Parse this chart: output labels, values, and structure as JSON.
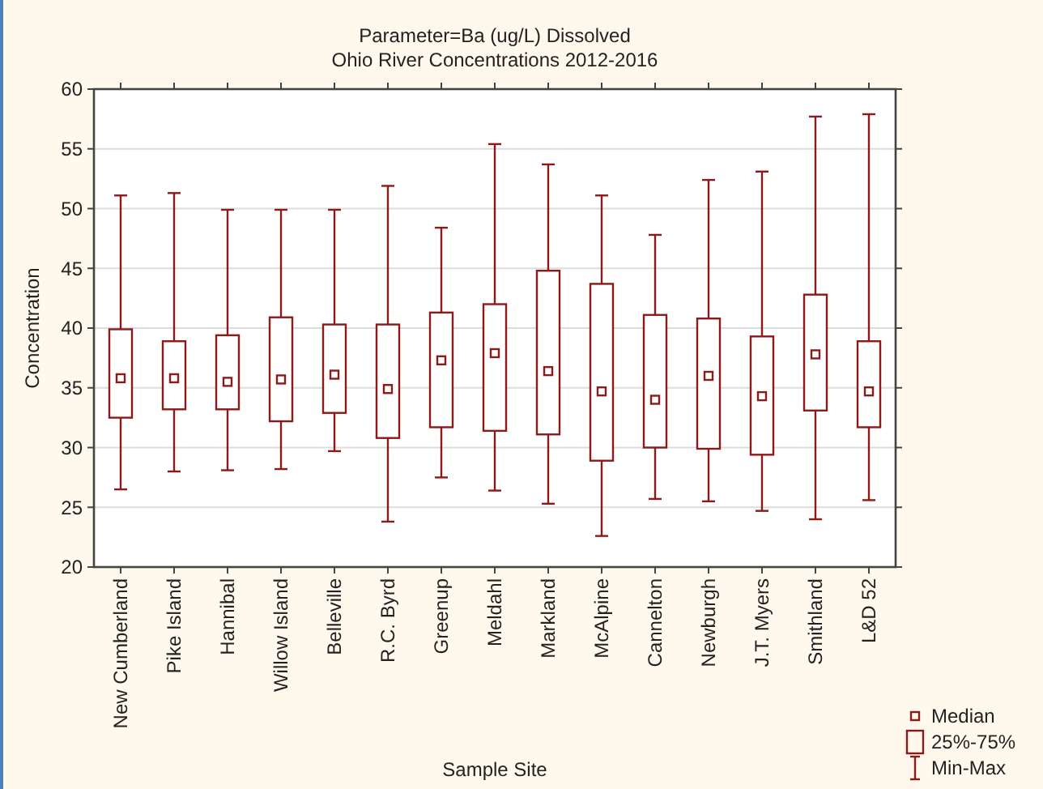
{
  "chart_data": {
    "type": "box",
    "title": "Parameter=Ba (ug/L) Dissolved",
    "subtitle": "Ohio River Concentrations 2012-2016",
    "xlabel": "Sample Site",
    "ylabel": "Concentration",
    "categories": [
      "New Cumberland",
      "Pike Island",
      "Hannibal",
      "Willow Island",
      "Belleville",
      "R.C. Byrd",
      "Greenup",
      "Meldahl",
      "Markland",
      "McAlpine",
      "Cannelton",
      "Newburgh",
      "J.T. Myers",
      "Smithland",
      "L&D 52"
    ],
    "color": "#8b1a1a",
    "boxes": [
      {
        "low": 26.5,
        "q1": 32.5,
        "median": 35.8,
        "q3": 39.9,
        "high": 51.1
      },
      {
        "low": 28.0,
        "q1": 33.2,
        "median": 35.8,
        "q3": 38.9,
        "high": 51.3
      },
      {
        "low": 28.1,
        "q1": 33.2,
        "median": 35.5,
        "q3": 39.4,
        "high": 49.9
      },
      {
        "low": 28.2,
        "q1": 32.2,
        "median": 35.7,
        "q3": 40.9,
        "high": 49.9
      },
      {
        "low": 29.7,
        "q1": 32.9,
        "median": 36.1,
        "q3": 40.3,
        "high": 49.9
      },
      {
        "low": 23.8,
        "q1": 30.8,
        "median": 34.9,
        "q3": 40.3,
        "high": 51.9
      },
      {
        "low": 27.5,
        "q1": 31.7,
        "median": 37.3,
        "q3": 41.3,
        "high": 48.4
      },
      {
        "low": 26.4,
        "q1": 31.4,
        "median": 37.9,
        "q3": 42.0,
        "high": 55.4
      },
      {
        "low": 25.3,
        "q1": 31.1,
        "median": 36.4,
        "q3": 44.8,
        "high": 53.7
      },
      {
        "low": 22.6,
        "q1": 28.9,
        "median": 34.7,
        "q3": 43.7,
        "high": 51.1
      },
      {
        "low": 25.7,
        "q1": 30.0,
        "median": 34.0,
        "q3": 41.1,
        "high": 47.8
      },
      {
        "low": 25.5,
        "q1": 29.9,
        "median": 36.0,
        "q3": 40.8,
        "high": 52.4
      },
      {
        "low": 24.7,
        "q1": 29.4,
        "median": 34.3,
        "q3": 39.3,
        "high": 53.1
      },
      {
        "low": 24.0,
        "q1": 33.1,
        "median": 37.8,
        "q3": 42.8,
        "high": 57.7
      },
      {
        "low": 25.6,
        "q1": 31.7,
        "median": 34.7,
        "q3": 38.9,
        "high": 57.9
      }
    ],
    "annotations": [
      "Median",
      "25%-75%",
      "Min-Max"
    ],
    "ylim": [
      20,
      60
    ],
    "yticks": [
      20,
      25,
      30,
      35,
      40,
      45,
      50,
      55,
      60
    ],
    "grid": "y"
  }
}
